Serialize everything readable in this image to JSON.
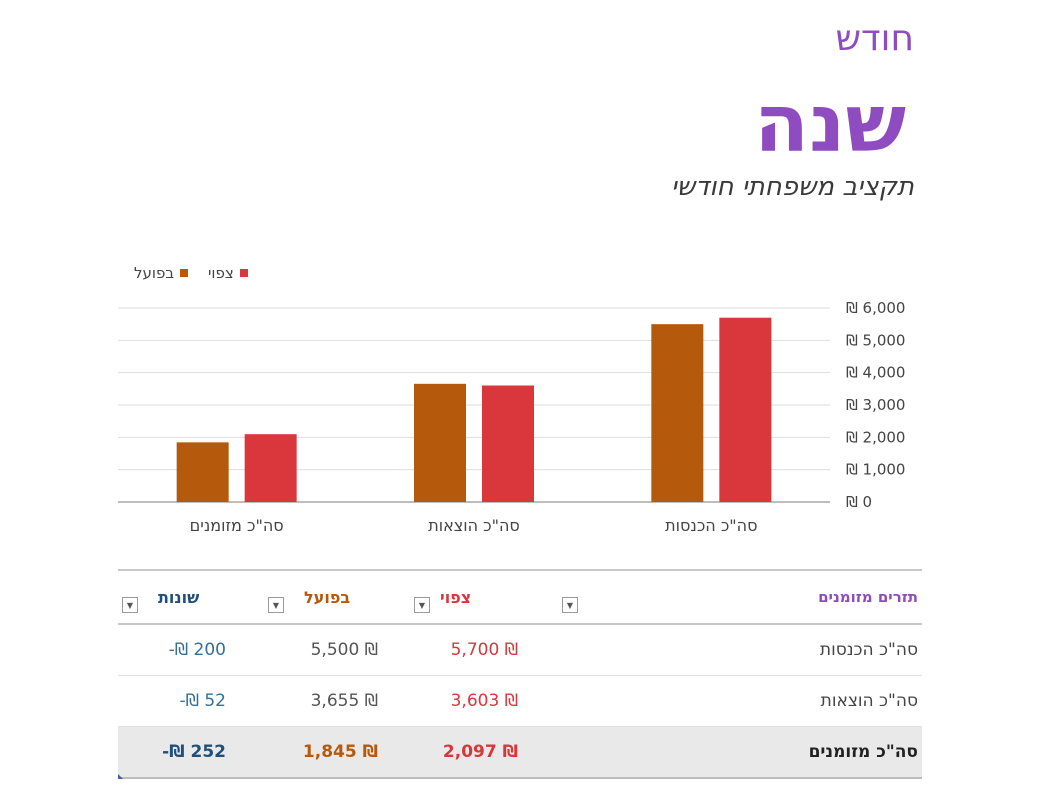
{
  "header": {
    "month": "חודש",
    "year": "שנה",
    "subtitle": "תקציב משפחתי חודשי"
  },
  "colors": {
    "accent_purple": "#8e4cc0",
    "actual": "#b55a0d",
    "expected": "#d9373b",
    "difference": "#35709a"
  },
  "chart_data": {
    "type": "bar",
    "categories": [
      "סה\"כ הכנסות",
      "סה\"כ הוצאות",
      "סה\"כ מזומנים"
    ],
    "series": [
      {
        "name": "בפועל",
        "color": "#b55a0d",
        "values": [
          5500,
          3655,
          1845
        ]
      },
      {
        "name": "צפוי",
        "color": "#d9373b",
        "values": [
          5700,
          3603,
          2097
        ]
      }
    ],
    "ylim": [
      0,
      6000
    ],
    "yticks": [
      0,
      1000,
      2000,
      3000,
      4000,
      5000,
      6000
    ],
    "ytick_labels": [
      "₪ 0",
      "₪ 1,000",
      "₪ 2,000",
      "₪ 3,000",
      "₪ 4,000",
      "₪ 5,000",
      "₪ 6,000"
    ],
    "grid": true,
    "legend": "top-left",
    "yaxis_side": "right"
  },
  "table": {
    "headers": {
      "category": "תזרים מזומנים",
      "expected": "צפוי",
      "actual": "בפועל",
      "difference": "שונות"
    },
    "rows": [
      {
        "category": "סה\"כ הכנסות",
        "expected": "5,700 ₪",
        "actual": "5,500 ₪",
        "difference": "-₪ 200"
      },
      {
        "category": "סה\"כ הוצאות",
        "expected": "3,603 ₪",
        "actual": "3,655 ₪",
        "difference": "-₪ 52"
      }
    ],
    "total": {
      "category": "סה\"כ מזומנים",
      "expected": "2,097 ₪",
      "actual": "1,845 ₪",
      "difference": "-₪ 252"
    }
  }
}
